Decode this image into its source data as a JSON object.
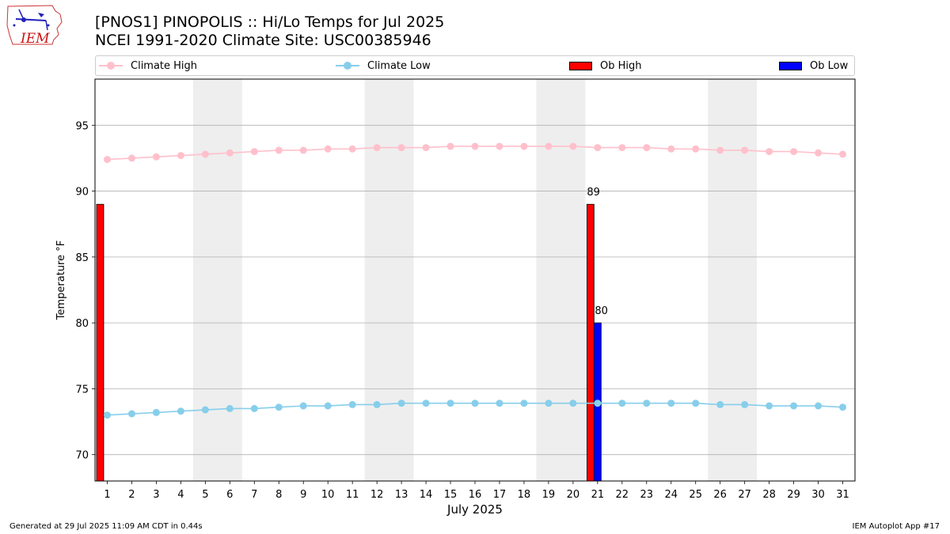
{
  "header": {
    "title_line1": "[PNOS1] PINOPOLIS :: Hi/Lo Temps for Jul 2025",
    "title_line2": "NCEI 1991-2020 Climate Site: USC00385946",
    "logo_text": "IEM"
  },
  "footer": {
    "left": "Generated at 29 Jul 2025 11:09 AM CDT in 0.44s",
    "right": "IEM Autoplot App #17"
  },
  "colors": {
    "climate_high": "#ffc0cb",
    "climate_low": "#87ceeb",
    "ob_high": "#ff0000",
    "ob_low": "#0000ff",
    "weekend_shade": "#eeeeee",
    "grid": "#b0b0b0"
  },
  "chart_data": {
    "type": "bar",
    "xlabel": "July 2025",
    "ylabel": "Temperature °F",
    "xlim": [
      0.5,
      31.5
    ],
    "ylim": [
      68,
      98.5
    ],
    "yticks": [
      70,
      75,
      80,
      85,
      90,
      95
    ],
    "grid": "horizontal",
    "legend_position": "top",
    "days": [
      1,
      2,
      3,
      4,
      5,
      6,
      7,
      8,
      9,
      10,
      11,
      12,
      13,
      14,
      15,
      16,
      17,
      18,
      19,
      20,
      21,
      22,
      23,
      24,
      25,
      26,
      27,
      28,
      29,
      30,
      31
    ],
    "weekend_days": [
      [
        5,
        6
      ],
      [
        12,
        13
      ],
      [
        19,
        20
      ],
      [
        26,
        27
      ]
    ],
    "series": [
      {
        "name": "Climate High",
        "kind": "line",
        "values": [
          92.4,
          92.5,
          92.6,
          92.7,
          92.8,
          92.9,
          93.0,
          93.1,
          93.1,
          93.2,
          93.2,
          93.3,
          93.3,
          93.3,
          93.4,
          93.4,
          93.4,
          93.4,
          93.4,
          93.4,
          93.3,
          93.3,
          93.3,
          93.2,
          93.2,
          93.1,
          93.1,
          93.0,
          93.0,
          92.9,
          92.8
        ]
      },
      {
        "name": "Climate Low",
        "kind": "line",
        "values": [
          73.0,
          73.1,
          73.2,
          73.3,
          73.4,
          73.5,
          73.5,
          73.6,
          73.7,
          73.7,
          73.8,
          73.8,
          73.9,
          73.9,
          73.9,
          73.9,
          73.9,
          73.9,
          73.9,
          73.9,
          73.9,
          73.9,
          73.9,
          73.9,
          73.9,
          73.8,
          73.8,
          73.7,
          73.7,
          73.7,
          73.6
        ]
      },
      {
        "name": "Ob High",
        "kind": "bar",
        "points": [
          {
            "day": 1,
            "value": 89
          },
          {
            "day": 21,
            "value": 89,
            "label": "89"
          }
        ]
      },
      {
        "name": "Ob Low",
        "kind": "bar",
        "points": [
          {
            "day": 21,
            "value": 80,
            "label": "80"
          }
        ]
      }
    ]
  }
}
